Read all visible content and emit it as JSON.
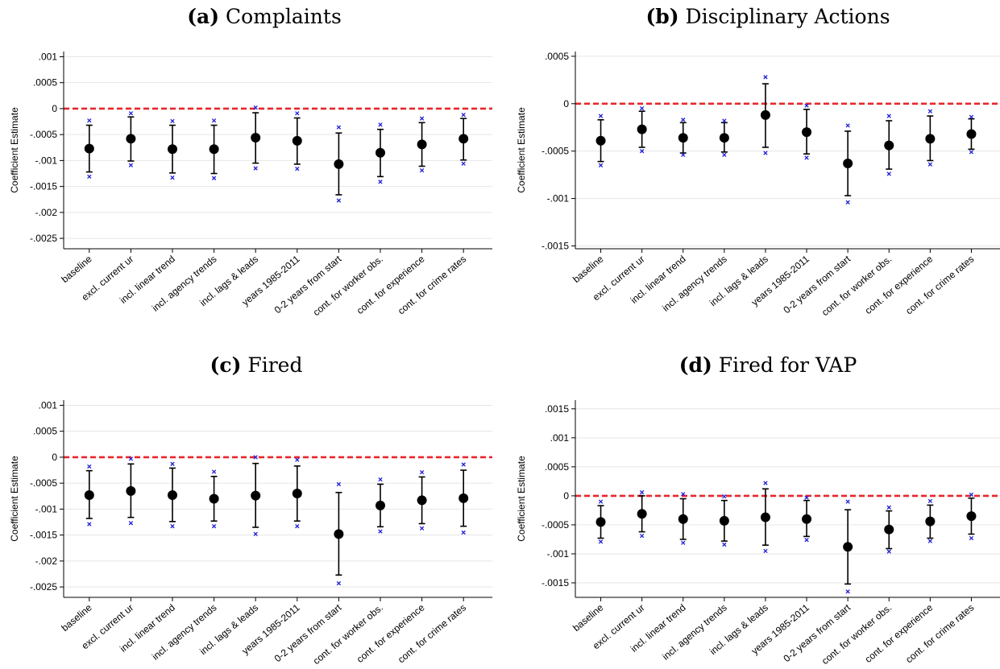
{
  "colors": {
    "zero_line": "#e8262b",
    "point": "#000000",
    "ci": "#000000",
    "cross": "#1f1fd6",
    "grid": "#e6e6e6",
    "axis": "#000000"
  },
  "chart_data": [
    {
      "type": "scatter",
      "panel_letter": "(a)",
      "title": "Complaints",
      "ylabel": "Coefficient Estimate",
      "xlabel": "",
      "ylim": [
        -0.0027,
        0.0011
      ],
      "yticks": [
        0.001,
        0.0005,
        0,
        -0.0005,
        -0.001,
        -0.0015,
        -0.002,
        -0.0025
      ],
      "ytick_labels": [
        ".001",
        ".0005",
        "0",
        "-.0005",
        "-.001",
        "-.0015",
        "-.002",
        "-.0025"
      ],
      "grid": true,
      "reference_line": 0,
      "categories": [
        "baseline",
        "excl. current ur",
        "incl. linear trend",
        "incl. agency trends",
        "incl. lags & leads",
        "years 1985-2011",
        "0-2 years from start",
        "cont. for worker obs.",
        "cont. for experience",
        "cont. for crime rates"
      ],
      "estimate": [
        -0.00077,
        -0.00058,
        -0.00078,
        -0.00078,
        -0.00056,
        -0.00062,
        -0.00107,
        -0.00085,
        -0.00069,
        -0.00058
      ],
      "ci_lower": [
        -0.00122,
        -0.00101,
        -0.00124,
        -0.00125,
        -0.00105,
        -0.00107,
        -0.00166,
        -0.00131,
        -0.00111,
        -0.00099
      ],
      "ci_upper": [
        -0.00032,
        -0.00016,
        -0.00032,
        -0.00032,
        -8e-05,
        -0.00018,
        -0.00047,
        -0.0004,
        -0.00027,
        -0.00019
      ],
      "marker_lower": [
        -0.00131,
        -0.00109,
        -0.00133,
        -0.00134,
        -0.00115,
        -0.00116,
        -0.00177,
        -0.00141,
        -0.00119,
        -0.00106
      ],
      "marker_upper": [
        -0.00023,
        -9e-05,
        -0.00024,
        -0.00023,
        2e-05,
        -9e-05,
        -0.00036,
        -0.00031,
        -0.00019,
        -0.00012
      ]
    },
    {
      "type": "scatter",
      "panel_letter": "(b)",
      "title": "Disciplinary Actions",
      "ylabel": "Coefficient Estimate",
      "xlabel": "",
      "ylim": [
        -0.00153,
        0.00055
      ],
      "yticks": [
        0.0005,
        0,
        -0.0005,
        -0.001,
        -0.0015
      ],
      "ytick_labels": [
        ".0005",
        "0",
        "-.0005",
        "-.001",
        "-.0015"
      ],
      "grid": true,
      "reference_line": 0,
      "categories": [
        "baseline",
        "excl. current ur",
        "incl. linear trend",
        "incl. agency trends",
        "incl. lags & leads",
        "years 1985-2011",
        "0-2 years from start",
        "cont. for worker obs.",
        "cont. for experience",
        "cont. for crime rates"
      ],
      "estimate": [
        -0.00039,
        -0.00027,
        -0.00036,
        -0.00036,
        -0.00012,
        -0.0003,
        -0.00063,
        -0.00044,
        -0.00037,
        -0.00032
      ],
      "ci_lower": [
        -0.00061,
        -0.00046,
        -0.00052,
        -0.00051,
        -0.00046,
        -0.00053,
        -0.00097,
        -0.00069,
        -0.0006,
        -0.00048
      ],
      "ci_upper": [
        -0.00017,
        -8e-05,
        -0.0002,
        -0.0002,
        0.00021,
        -6e-05,
        -0.00029,
        -0.00018,
        -0.00013,
        -0.00016
      ],
      "marker_lower": [
        -0.00065,
        -0.0005,
        -0.00054,
        -0.00054,
        -0.00052,
        -0.00057,
        -0.00104,
        -0.00074,
        -0.00064,
        -0.00051
      ],
      "marker_upper": [
        -0.00013,
        -5e-05,
        -0.00017,
        -0.00018,
        0.00028,
        -2e-05,
        -0.00023,
        -0.00013,
        -8e-05,
        -0.00014
      ]
    },
    {
      "type": "scatter",
      "panel_letter": "(c)",
      "title": "Fired",
      "ylabel": "Coefficient Estimate",
      "xlabel": "",
      "ylim": [
        -0.0027,
        0.0011
      ],
      "yticks": [
        0.001,
        0.0005,
        0,
        -0.0005,
        -0.001,
        -0.0015,
        -0.002,
        -0.0025
      ],
      "ytick_labels": [
        ".001",
        ".0005",
        "0",
        "-.0005",
        "-.001",
        "-.0015",
        "-.002",
        "-.0025"
      ],
      "grid": true,
      "reference_line": 0,
      "categories": [
        "baseline",
        "excl. current ur",
        "incl. linear trend",
        "incl. agency trends",
        "incl. lags & leads",
        "years 1985-2011",
        "0-2 years from start",
        "cont. for worker obs.",
        "cont. for experience",
        "cont. for crime rates"
      ],
      "estimate": [
        -0.00073,
        -0.00065,
        -0.00073,
        -0.0008,
        -0.00074,
        -0.0007,
        -0.00148,
        -0.00093,
        -0.00083,
        -0.00079
      ],
      "ci_lower": [
        -0.00118,
        -0.00116,
        -0.00124,
        -0.00123,
        -0.00135,
        -0.00123,
        -0.00227,
        -0.00134,
        -0.00128,
        -0.00133
      ],
      "ci_upper": [
        -0.00026,
        -0.00013,
        -0.00021,
        -0.00037,
        -0.00012,
        -0.00017,
        -0.00068,
        -0.00052,
        -0.00038,
        -0.00025
      ],
      "marker_lower": [
        -0.00129,
        -0.00127,
        -0.00133,
        -0.00133,
        -0.00148,
        -0.00133,
        -0.00243,
        -0.00143,
        -0.00137,
        -0.00145
      ],
      "marker_upper": [
        -0.00018,
        -3e-05,
        -0.00013,
        -0.00028,
        0.0,
        -5e-05,
        -0.00052,
        -0.00043,
        -0.00029,
        -0.00014
      ]
    },
    {
      "type": "scatter",
      "panel_letter": "(d)",
      "title": "Fired for VAP",
      "ylabel": "Coefficient Estimate",
      "xlabel": "",
      "ylim": [
        -0.00175,
        0.00165
      ],
      "yticks": [
        0.0015,
        0.001,
        0.0005,
        0,
        -0.0005,
        -0.001,
        -0.0015
      ],
      "ytick_labels": [
        ".0015",
        ".001",
        ".0005",
        "0",
        "-.0005",
        "-.001",
        "-.0015"
      ],
      "grid": true,
      "reference_line": 0,
      "categories": [
        "baseline",
        "excl. current ur",
        "incl. linear trend",
        "incl. agency trends",
        "incl. lags & leads",
        "years 1985-2011",
        "0-2 years from start",
        "cont. for worker obs.",
        "cont. for experience",
        "cont. for crime rates"
      ],
      "estimate": [
        -0.00045,
        -0.00031,
        -0.0004,
        -0.00043,
        -0.00037,
        -0.0004,
        -0.00088,
        -0.00058,
        -0.00044,
        -0.00035
      ],
      "ci_lower": [
        -0.00073,
        -0.00062,
        -0.00075,
        -0.00078,
        -0.00085,
        -0.0007,
        -0.00152,
        -0.00091,
        -0.00073,
        -0.00066
      ],
      "ci_upper": [
        -0.00017,
        0.0,
        -5e-05,
        -8e-05,
        0.00012,
        -8e-05,
        -0.00024,
        -0.00026,
        -0.00016,
        -4e-05
      ],
      "marker_lower": [
        -0.00079,
        -0.00069,
        -0.00081,
        -0.00084,
        -0.00095,
        -0.00076,
        -0.00165,
        -0.00096,
        -0.00078,
        -0.00073
      ],
      "marker_upper": [
        -0.0001,
        6e-05,
        3e-05,
        -1e-05,
        0.00022,
        -3e-05,
        -0.0001,
        -0.0002,
        -9e-05,
        2e-05
      ]
    }
  ]
}
